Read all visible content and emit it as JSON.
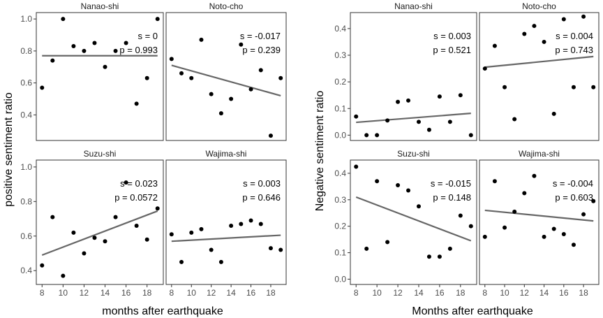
{
  "figure": {
    "left_block": {
      "xlabel": "months after earthquake",
      "ylabel": "positive sentiment ratio"
    },
    "right_block": {
      "xlabel": "Months after earthquake",
      "ylabel": "Negative sentiment ratio"
    }
  },
  "colors": {
    "point": "#000000",
    "fit_line": "#666666",
    "frame": "#333333",
    "tick_text": "#4d4d4d"
  },
  "chart_data": [
    {
      "type": "scatter",
      "title": "Nanao-shi",
      "xlabel": "months after earthquake",
      "ylabel": "positive sentiment ratio",
      "xlim": [
        7.45,
        19.55
      ],
      "ylim": [
        0.24,
        1.04
      ],
      "xticks": [
        8,
        10,
        12,
        14,
        16,
        18
      ],
      "yticks": [
        0.4,
        0.6,
        0.8,
        1.0
      ],
      "ytick_labels": [
        "0.4",
        "0.6",
        "0.8",
        "1.0"
      ],
      "x": [
        8,
        9,
        10,
        11,
        12,
        13,
        14,
        15,
        16,
        17,
        18,
        19
      ],
      "y": [
        0.57,
        0.74,
        1.0,
        0.83,
        0.8,
        0.85,
        0.7,
        0.8,
        0.85,
        0.47,
        0.63,
        1.0
      ],
      "fit": {
        "x": [
          8,
          19
        ],
        "y": [
          0.77,
          0.77
        ]
      },
      "annotation": [
        "s = 0",
        "p = 0.993"
      ]
    },
    {
      "type": "scatter",
      "title": "Noto-cho",
      "xlabel": "months after earthquake",
      "ylabel": "positive sentiment ratio",
      "xlim": [
        7.45,
        19.55
      ],
      "ylim": [
        0.24,
        1.04
      ],
      "xticks": [
        8,
        10,
        12,
        14,
        16,
        18
      ],
      "yticks": [
        0.4,
        0.6,
        0.8,
        1.0
      ],
      "ytick_labels": [
        "0.4",
        "0.6",
        "0.8",
        "1.0"
      ],
      "x": [
        8,
        9,
        10,
        11,
        12,
        13,
        14,
        15,
        16,
        17,
        18,
        19
      ],
      "y": [
        0.75,
        0.66,
        0.63,
        0.87,
        0.53,
        0.41,
        0.5,
        0.84,
        0.56,
        0.68,
        0.27,
        0.63
      ],
      "fit": {
        "x": [
          8,
          19
        ],
        "y": [
          0.71,
          0.52
        ]
      },
      "annotation": [
        "s = -0.017",
        "p = 0.239"
      ]
    },
    {
      "type": "scatter",
      "title": "Suzu-shi",
      "xlabel": "months after earthquake",
      "ylabel": "positive sentiment ratio",
      "xlim": [
        7.45,
        19.55
      ],
      "ylim": [
        0.32,
        1.04
      ],
      "xticks": [
        8,
        10,
        12,
        14,
        16,
        18
      ],
      "yticks": [
        0.4,
        0.6,
        0.8,
        1.0
      ],
      "ytick_labels": [
        "0.4",
        "0.6",
        "0.8",
        "1.0"
      ],
      "x": [
        8,
        9,
        10,
        11,
        12,
        13,
        14,
        15,
        16,
        17,
        18,
        19
      ],
      "y": [
        0.43,
        0.71,
        0.37,
        0.62,
        0.5,
        0.59,
        0.57,
        0.71,
        0.91,
        0.66,
        0.58,
        0.76
      ],
      "fit": {
        "x": [
          8,
          19
        ],
        "y": [
          0.49,
          0.745
        ]
      },
      "annotation": [
        "s = 0.023",
        "p = 0.0572"
      ]
    },
    {
      "type": "scatter",
      "title": "Wajima-shi",
      "xlabel": "months after earthquake",
      "ylabel": "positive sentiment ratio",
      "xlim": [
        7.45,
        19.55
      ],
      "ylim": [
        0.32,
        1.04
      ],
      "xticks": [
        8,
        10,
        12,
        14,
        16,
        18
      ],
      "yticks": [
        0.4,
        0.6,
        0.8,
        1.0
      ],
      "ytick_labels": [
        "0.4",
        "0.6",
        "0.8",
        "1.0"
      ],
      "x": [
        8,
        9,
        10,
        11,
        12,
        13,
        14,
        15,
        16,
        17,
        18,
        19
      ],
      "y": [
        0.61,
        0.45,
        0.62,
        0.64,
        0.52,
        0.45,
        0.66,
        0.67,
        0.69,
        0.67,
        0.53,
        0.52
      ],
      "fit": {
        "x": [
          8,
          19
        ],
        "y": [
          0.57,
          0.605
        ]
      },
      "annotation": [
        "s = 0.003",
        "p = 0.646"
      ]
    },
    {
      "type": "scatter",
      "title": "Nanao-shi",
      "xlabel": "Months after earthquake",
      "ylabel": "Negative sentiment ratio",
      "xlim": [
        7.45,
        19.55
      ],
      "ylim": [
        -0.02,
        0.46
      ],
      "xticks": [
        8,
        10,
        12,
        14,
        16,
        18
      ],
      "yticks": [
        0.0,
        0.1,
        0.2,
        0.3,
        0.4
      ],
      "ytick_labels": [
        "0.0",
        "0.1",
        "0.2",
        "0.3",
        "0.4"
      ],
      "x": [
        8,
        9,
        10,
        11,
        12,
        13,
        14,
        15,
        16,
        17,
        18,
        19
      ],
      "y": [
        0.07,
        0.0,
        0.0,
        0.055,
        0.125,
        0.13,
        0.05,
        0.02,
        0.145,
        0.05,
        0.15,
        0.0
      ],
      "fit": {
        "x": [
          8,
          19
        ],
        "y": [
          0.048,
          0.082
        ]
      },
      "annotation": [
        "s = 0.003",
        "p = 0.521"
      ]
    },
    {
      "type": "scatter",
      "title": "Noto-cho",
      "xlabel": "Months after earthquake",
      "ylabel": "Negative sentiment ratio",
      "xlim": [
        7.45,
        19.55
      ],
      "ylim": [
        -0.02,
        0.46
      ],
      "xticks": [
        8,
        10,
        12,
        14,
        16,
        18
      ],
      "yticks": [
        0.0,
        0.1,
        0.2,
        0.3,
        0.4
      ],
      "ytick_labels": [
        "0.0",
        "0.1",
        "0.2",
        "0.3",
        "0.4"
      ],
      "x": [
        8,
        9,
        10,
        11,
        12,
        13,
        14,
        15,
        16,
        17,
        18,
        19
      ],
      "y": [
        0.25,
        0.335,
        0.18,
        0.06,
        0.38,
        0.41,
        0.35,
        0.08,
        0.435,
        0.18,
        0.445,
        0.18
      ],
      "fit": {
        "x": [
          8,
          19
        ],
        "y": [
          0.255,
          0.295
        ]
      },
      "annotation": [
        "s = 0.004",
        "p = 0.743"
      ]
    },
    {
      "type": "scatter",
      "title": "Suzu-shi",
      "xlabel": "Months after earthquake",
      "ylabel": "Negative sentiment ratio",
      "xlim": [
        7.45,
        19.55
      ],
      "ylim": [
        -0.02,
        0.45
      ],
      "xticks": [
        8,
        10,
        12,
        14,
        16,
        18
      ],
      "yticks": [
        0.0,
        0.1,
        0.2,
        0.3,
        0.4
      ],
      "ytick_labels": [
        "0.0",
        "0.1",
        "0.2",
        "0.3",
        "0.4"
      ],
      "x": [
        8,
        9,
        10,
        11,
        12,
        13,
        14,
        15,
        16,
        17,
        18,
        19
      ],
      "y": [
        0.425,
        0.115,
        0.37,
        0.14,
        0.355,
        0.335,
        0.275,
        0.085,
        0.085,
        0.115,
        0.24,
        0.2
      ],
      "fit": {
        "x": [
          8,
          19
        ],
        "y": [
          0.31,
          0.145
        ]
      },
      "annotation": [
        "s = -0.015",
        "p = 0.148"
      ]
    },
    {
      "type": "scatter",
      "title": "Wajima-shi",
      "xlabel": "Months after earthquake",
      "ylabel": "Negative sentiment ratio",
      "xlim": [
        7.45,
        19.55
      ],
      "ylim": [
        -0.02,
        0.45
      ],
      "xticks": [
        8,
        10,
        12,
        14,
        16,
        18
      ],
      "yticks": [
        0.0,
        0.1,
        0.2,
        0.3,
        0.4
      ],
      "ytick_labels": [
        "0.0",
        "0.1",
        "0.2",
        "0.3",
        "0.4"
      ],
      "x": [
        8,
        9,
        10,
        11,
        12,
        13,
        14,
        15,
        16,
        17,
        18,
        19
      ],
      "y": [
        0.16,
        0.37,
        0.195,
        0.255,
        0.325,
        0.39,
        0.16,
        0.19,
        0.17,
        0.13,
        0.245,
        0.295
      ],
      "fit": {
        "x": [
          8,
          19
        ],
        "y": [
          0.26,
          0.22
        ]
      },
      "annotation": [
        "s = -0.004",
        "p = 0.603"
      ]
    }
  ]
}
